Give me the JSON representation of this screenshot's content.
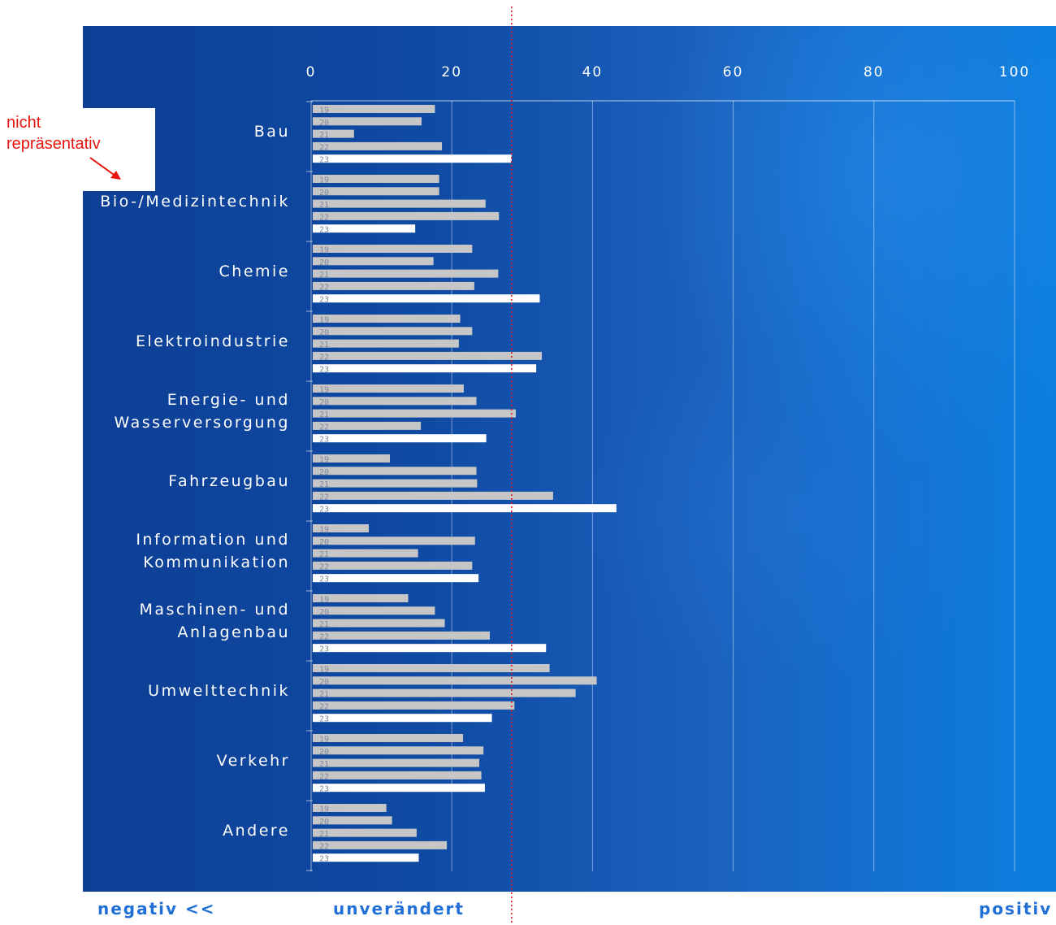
{
  "chart_data": {
    "type": "bar",
    "orientation": "horizontal",
    "xlim": [
      0,
      100
    ],
    "x_ticks": [
      "0",
      "20",
      "40",
      "60",
      "80",
      "100"
    ],
    "reference_line": 28.5,
    "years": [
      "19",
      "20",
      "21",
      "22",
      "23"
    ],
    "categories": [
      "Bau",
      "Bio-/Medizintechnik",
      "Chemie",
      "Elektroindustrie",
      "Energie- und\nWasserversorgung",
      "Fahrzeugbau",
      "Information und\nKommunikation",
      "Maschinen- und\nAnlagenbau",
      "Umwelttechnik",
      "Verkehr",
      "Andere"
    ],
    "values": [
      [
        17.6,
        15.7,
        6.1,
        18.6,
        28.5
      ],
      [
        18.2,
        18.2,
        24.8,
        26.7,
        14.8
      ],
      [
        22.9,
        17.4,
        26.6,
        23.2,
        32.5
      ],
      [
        21.2,
        22.9,
        21.0,
        32.8,
        32.0
      ],
      [
        21.7,
        23.5,
        29.1,
        15.6,
        24.9
      ],
      [
        11.2,
        23.5,
        23.6,
        34.4,
        43.4
      ],
      [
        8.2,
        23.3,
        15.2,
        22.9,
        23.8
      ],
      [
        13.8,
        17.6,
        19.0,
        25.4,
        33.4
      ],
      [
        33.9,
        40.6,
        37.6,
        28.9,
        25.7
      ],
      [
        21.6,
        24.5,
        23.9,
        24.2,
        24.7
      ],
      [
        10.7,
        11.5,
        15.0,
        19.3,
        15.3
      ]
    ],
    "colors": {
      "past": "#c6c6c6",
      "current": "#ffffff",
      "reference": "#e11d1d"
    }
  },
  "labels": {
    "negative": "negativ <<",
    "neutral": "unverändert",
    "positive": "positiv",
    "note": "nicht\nrepräsentativ"
  }
}
